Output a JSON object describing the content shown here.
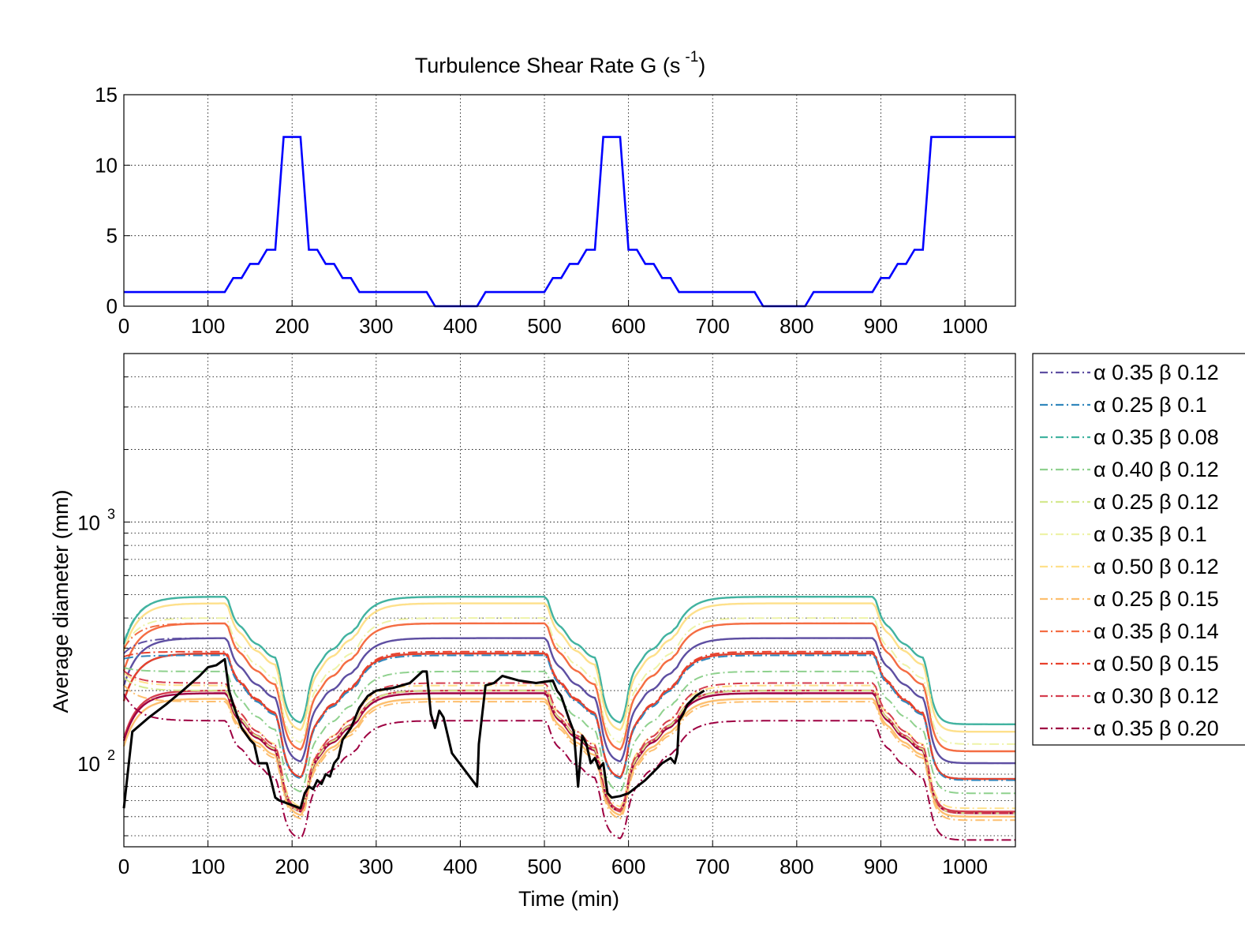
{
  "chart_data": [
    {
      "type": "line",
      "title": "Turbulence Shear Rate G (s",
      "title_sup": "-1",
      "title_end": ")",
      "xlabel": "",
      "ylabel": "",
      "xlim": [
        0,
        1060
      ],
      "ylim": [
        0,
        15
      ],
      "xticks": [
        "0",
        "100",
        "200",
        "300",
        "400",
        "500",
        "600",
        "700",
        "800",
        "900",
        "1000"
      ],
      "yticks": [
        "0",
        "5",
        "10",
        "15"
      ],
      "grid": true,
      "series": [
        {
          "color": "#0000ff",
          "x": [
            0,
            120,
            130,
            140,
            150,
            160,
            170,
            180,
            190,
            200,
            210,
            220,
            230,
            240,
            250,
            260,
            270,
            280,
            300,
            360,
            370,
            420,
            430,
            500,
            510,
            520,
            530,
            540,
            550,
            560,
            570,
            580,
            590,
            600,
            610,
            620,
            630,
            640,
            650,
            660,
            670,
            680,
            700,
            750,
            760,
            810,
            820,
            890,
            900,
            910,
            920,
            930,
            940,
            950,
            960,
            970,
            1060
          ],
          "y": [
            1,
            1,
            2,
            2,
            3,
            3,
            4,
            4,
            12,
            12,
            12,
            4,
            4,
            3,
            3,
            2,
            2,
            1,
            1,
            1,
            0,
            0,
            1,
            1,
            2,
            2,
            3,
            3,
            4,
            4,
            12,
            12,
            12,
            4,
            4,
            3,
            3,
            2,
            2,
            1,
            1,
            1,
            1,
            1,
            0,
            0,
            1,
            1,
            2,
            2,
            3,
            3,
            4,
            4,
            12,
            12,
            12
          ]
        }
      ]
    },
    {
      "type": "line",
      "title": "",
      "xlabel": "Time (min)",
      "ylabel": "Average diameter (mm)",
      "xlim": [
        0,
        1060
      ],
      "ylim": [
        45,
        5000
      ],
      "yscale": "log",
      "xticks": [
        "0",
        "100",
        "200",
        "300",
        "400",
        "500",
        "600",
        "700",
        "800",
        "900",
        "1000"
      ],
      "yticks": [
        {
          "value": 100,
          "base": "10",
          "exp": "2"
        },
        {
          "value": 1000,
          "base": "10",
          "exp": "3"
        }
      ],
      "grid": true,
      "legend_position": "outside right",
      "model_series": [
        {
          "name": "α 0.35 β 0.12",
          "color": "#5e4fa2",
          "style": "dashdot",
          "steady": 330,
          "low": 100,
          "start": 280
        },
        {
          "name": "α 0.25 β 0.1",
          "color": "#3288bd",
          "style": "dashdot",
          "steady": 280,
          "low": 85,
          "start": 270
        },
        {
          "name": "α 0.35 β 0.08",
          "color": "#42b3a0",
          "style": "dashdot",
          "steady": 490,
          "low": 145,
          "start": 300
        },
        {
          "name": "α 0.40 β 0.12",
          "color": "#8fd18e",
          "style": "dashdot",
          "steady": 240,
          "low": 75,
          "start": 250
        },
        {
          "name": "α 0.25 β 0.12",
          "color": "#d4e98f",
          "style": "dashdot",
          "steady": 200,
          "low": 62,
          "start": 230
        },
        {
          "name": "α 0.35 β 0.1",
          "color": "#eef3a8",
          "style": "dashdot",
          "steady": 400,
          "low": 120,
          "start": 290
        },
        {
          "name": "α 0.50 β 0.12",
          "color": "#fee08b",
          "style": "dashdot",
          "steady": 210,
          "low": 65,
          "start": 240
        },
        {
          "name": "α 0.25 β 0.15",
          "color": "#fdbf6f",
          "style": "dashdot",
          "steady": 180,
          "low": 58,
          "start": 215
        },
        {
          "name": "α 0.35 β 0.14",
          "color": "#f46d43",
          "style": "dashdot",
          "steady": 380,
          "low": 112,
          "start": 290
        },
        {
          "name": "α 0.50 β 0.15",
          "color": "#e8412c",
          "style": "dashdot",
          "steady": 290,
          "low": 86,
          "start": 275
        },
        {
          "name": "α 0.30 β 0.12",
          "color": "#d53e4f",
          "style": "dashdot",
          "steady": 215,
          "low": 62,
          "start": 245
        },
        {
          "name": "α 0.35 β 0.20",
          "color": "#9e0142",
          "style": "dashdot",
          "steady": 150,
          "low": 48,
          "start": 200
        }
      ],
      "solid_companions": [
        {
          "color": "#42b3a0",
          "steady": 490,
          "low": 145
        },
        {
          "color": "#fee08b",
          "steady": 460,
          "low": 135
        },
        {
          "color": "#f46d43",
          "steady": 380,
          "low": 112
        },
        {
          "color": "#5e4fa2",
          "steady": 330,
          "low": 100
        },
        {
          "color": "#3288bd",
          "steady": 285,
          "low": 86
        },
        {
          "color": "#e8412c",
          "steady": 285,
          "low": 86
        },
        {
          "color": "#fdbf6f",
          "steady": 185,
          "low": 60
        },
        {
          "color": "#d53e4f",
          "steady": 200,
          "low": 63
        },
        {
          "color": "#9e0142",
          "steady": 195,
          "low": 62
        }
      ],
      "observed": {
        "color": "#000000",
        "x": [
          0,
          10,
          30,
          50,
          70,
          90,
          100,
          110,
          120,
          125,
          130,
          140,
          150,
          155,
          160,
          170,
          180,
          185,
          190,
          200,
          210,
          215,
          220,
          225,
          230,
          235,
          240,
          245,
          250,
          255,
          260,
          270,
          280,
          290,
          300,
          320,
          340,
          355,
          360,
          365,
          370,
          375,
          380,
          390,
          420,
          421,
          422,
          430,
          440,
          450,
          470,
          490,
          510,
          515,
          520,
          530,
          535,
          537,
          540,
          545,
          550,
          555,
          560,
          565,
          570,
          575,
          580,
          590,
          600,
          620,
          640,
          650,
          655,
          658,
          660,
          665,
          670,
          680,
          690
        ],
        "y": [
          65,
          135,
          155,
          175,
          200,
          230,
          250,
          255,
          270,
          200,
          175,
          140,
          125,
          120,
          100,
          100,
          72,
          70,
          69,
          67,
          65,
          75,
          80,
          78,
          85,
          82,
          90,
          88,
          100,
          105,
          125,
          140,
          170,
          190,
          200,
          205,
          215,
          240,
          240,
          160,
          140,
          165,
          155,
          110,
          80,
          95,
          120,
          210,
          215,
          230,
          220,
          215,
          220,
          200,
          190,
          150,
          135,
          110,
          80,
          130,
          120,
          100,
          105,
          95,
          100,
          75,
          72,
          73,
          75,
          85,
          100,
          105,
          100,
          110,
          150,
          160,
          175,
          190,
          200
        ]
      }
    }
  ]
}
